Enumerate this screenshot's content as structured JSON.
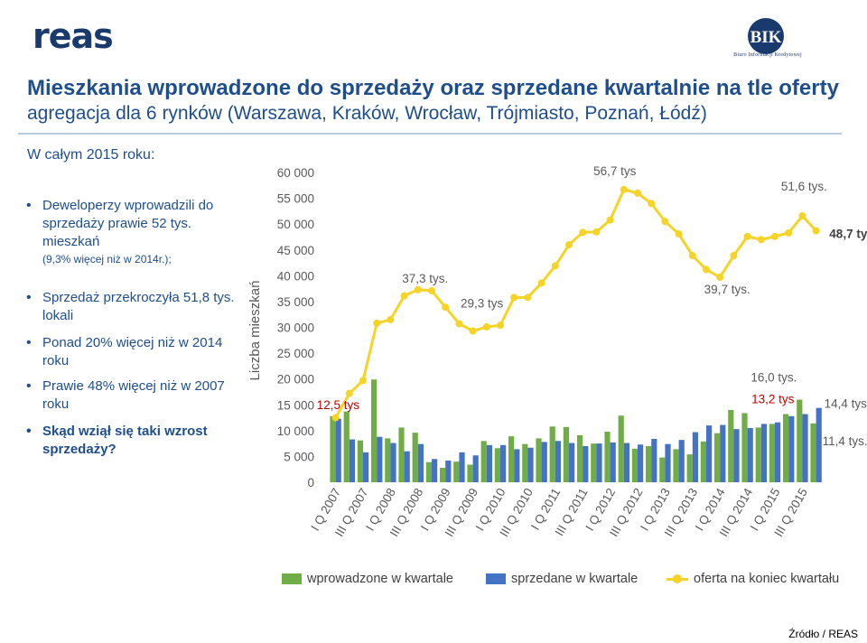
{
  "header": {
    "logo_left": "reas",
    "logo_right": "BIK",
    "logo_right_subtitle": "Biuro Informacji Kredytowej",
    "title": "Mieszkania wprowadzone do sprzedaży oraz sprzedane kwartalnie na tle oferty",
    "subtitle": "agregacja dla 6 rynków (Warszawa, Kraków, Wrocław, Trójmiasto, Poznań, Łódź)"
  },
  "summary": {
    "label": "W całym 2015 roku:",
    "bullets": [
      {
        "text": "Deweloperzy wprowadzili do sprzedaży prawie 52 tys. mieszkań",
        "note": "(9,3% więcej niż w 2014r.);"
      },
      {
        "text": "Sprzedaż przekroczyła 51,8 tys. lokali"
      },
      {
        "text": "Ponad 20% więcej niż w 2014 roku"
      },
      {
        "text": "Prawie 48% więcej niż w 2007 roku"
      },
      {
        "text": "Skąd wziął się taki wzrost sprzedaży?"
      }
    ]
  },
  "footer": {
    "source": "Źródło / REAS"
  },
  "colors": {
    "introduced": "#70ad47",
    "sold": "#4472c4",
    "offer": "#f5d327",
    "red": "#c00000"
  },
  "chart_data": {
    "type": "bar+line",
    "ylabel": "Liczba mieszkań",
    "ylim": [
      0,
      60000
    ],
    "yticks": [
      "0",
      "5 000",
      "10 000",
      "15 000",
      "20 000",
      "25 000",
      "30 000",
      "35 000",
      "40 000",
      "45 000",
      "50 000",
      "55 000",
      "60 000"
    ],
    "x_labels": [
      "I Q 2007",
      "III Q 2007",
      "I Q 2008",
      "III Q 2008",
      "I Q 2009",
      "III Q 2009",
      "I Q 2010",
      "III Q 2010",
      "I Q 2011",
      "III Q 2011",
      "I Q 2012",
      "III Q 2012",
      "I Q 2013",
      "III Q 2013",
      "I Q 2014",
      "III Q 2014",
      "I Q 2015",
      "III Q 2015"
    ],
    "categories": [
      "I Q 2007",
      "II Q 2007",
      "III Q 2007",
      "IV Q 2007",
      "I Q 2008",
      "II Q 2008",
      "III Q 2008",
      "IV Q 2008",
      "I Q 2009",
      "II Q 2009",
      "III Q 2009",
      "IV Q 2009",
      "I Q 2010",
      "II Q 2010",
      "III Q 2010",
      "IV Q 2010",
      "I Q 2011",
      "II Q 2011",
      "III Q 2011",
      "IV Q 2011",
      "I Q 2012",
      "II Q 2012",
      "III Q 2012",
      "IV Q 2012",
      "I Q 2013",
      "II Q 2013",
      "III Q 2013",
      "IV Q 2013",
      "I Q 2014",
      "II Q 2014",
      "III Q 2014",
      "IV Q 2014",
      "I Q 2015",
      "II Q 2015",
      "III Q 2015",
      "IV Q 2015"
    ],
    "series": [
      {
        "name": "wprowadzone w kwartale",
        "type": "bar",
        "values": [
          12800,
          13700,
          8100,
          19900,
          8500,
          10600,
          9600,
          3900,
          2800,
          4000,
          3400,
          8000,
          6600,
          8900,
          7400,
          8500,
          10800,
          10700,
          9100,
          7500,
          9800,
          12900,
          6500,
          7000,
          4800,
          6400,
          5400,
          7900,
          9500,
          14000,
          13400,
          10600,
          11300,
          13200,
          16000,
          11400
        ]
      },
      {
        "name": "sprzedane w kwartale",
        "type": "bar",
        "values": [
          12300,
          8300,
          5800,
          8800,
          7600,
          6000,
          7400,
          4500,
          4200,
          5800,
          5200,
          7200,
          7200,
          6400,
          6700,
          7800,
          8000,
          7600,
          7000,
          7500,
          7700,
          7600,
          7300,
          8400,
          7400,
          8200,
          9700,
          11000,
          11100,
          10300,
          10500,
          11300,
          11600,
          12800,
          13200,
          14400
        ]
      },
      {
        "name": "oferta na koniec kwartału",
        "type": "line",
        "values": [
          12500,
          17200,
          19700,
          30800,
          31500,
          36100,
          37300,
          37100,
          33900,
          30700,
          29300,
          30100,
          30400,
          35800,
          35800,
          38600,
          41900,
          46000,
          48400,
          48500,
          50800,
          56700,
          56000,
          54000,
          50500,
          48100,
          43900,
          41200,
          39700,
          43900,
          47600,
          47000,
          47600,
          48300,
          51600,
          48700
        ]
      }
    ],
    "annotations": [
      {
        "text": "12,5 tys",
        "index": 0,
        "series": "offer",
        "color": "red"
      },
      {
        "text": "37,3 tys.",
        "index": 6,
        "series": "offer"
      },
      {
        "text": "29,3 tys",
        "index": 10,
        "series": "offer"
      },
      {
        "text": "56,7 tys",
        "index": 21,
        "series": "offer"
      },
      {
        "text": "39,7 tys.",
        "index": 28,
        "series": "offer"
      },
      {
        "text": "51,6 tys.",
        "index": 34,
        "series": "offer"
      },
      {
        "text": "48,7 tys.",
        "index": 35,
        "series": "offer",
        "bold": true
      },
      {
        "text": "16,0 tys.",
        "index": 34,
        "series": "introduced"
      },
      {
        "text": "13,2 tys",
        "index": 34,
        "series": "sold",
        "color": "red"
      },
      {
        "text": "14,4 tys.",
        "index": 35,
        "series": "sold"
      },
      {
        "text": "11,4 tys.",
        "index": 35,
        "series": "introduced"
      }
    ],
    "legend_position": "bottom",
    "grid": false
  }
}
